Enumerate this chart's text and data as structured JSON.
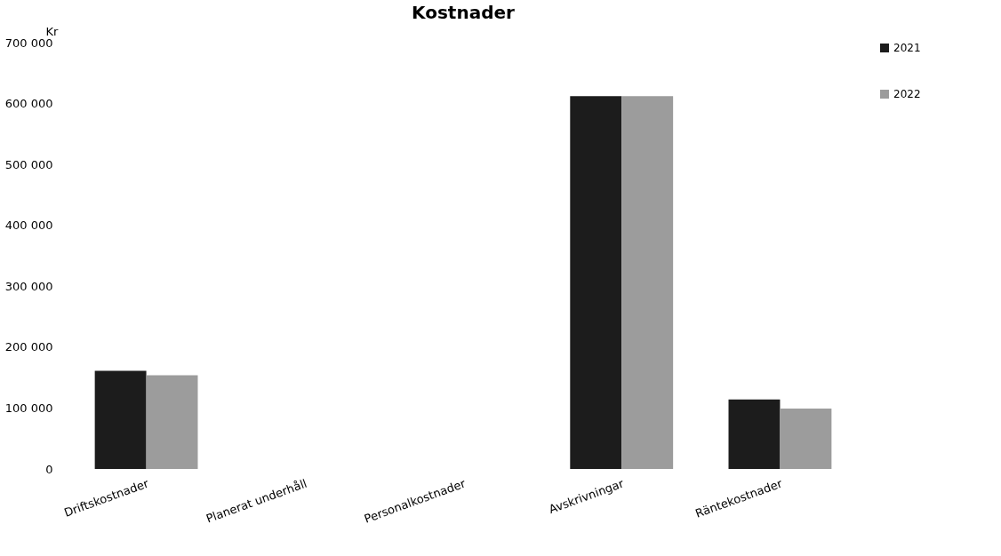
{
  "chart_data": {
    "type": "bar",
    "title": "Kostnader",
    "ylabel": "Kr",
    "categories": [
      "Driftskostnader",
      "Planerat underhåll",
      "Personalkostnader",
      "Avskrivningar",
      "Räntekostnader"
    ],
    "series": [
      {
        "name": "2021",
        "color": "#1c1c1c",
        "values": [
          161000,
          null,
          null,
          612000,
          114000
        ]
      },
      {
        "name": "2022",
        "color": "#9c9c9c",
        "values": [
          154000,
          null,
          null,
          612000,
          99000
        ]
      }
    ],
    "ylim": [
      0,
      700000
    ],
    "yticks": [
      0,
      {
        "value": 100000,
        "label": "100 000"
      },
      {
        "value": 200000,
        "label": "200 000"
      },
      {
        "value": 300000,
        "label": "300 000"
      },
      {
        "value": 400000,
        "label": "400 000"
      },
      {
        "value": 500000,
        "label": "500 000"
      },
      {
        "value": 600000,
        "label": "600 000"
      },
      {
        "value": 700000,
        "label": "700 000"
      }
    ],
    "grid": false,
    "legend": "right"
  }
}
